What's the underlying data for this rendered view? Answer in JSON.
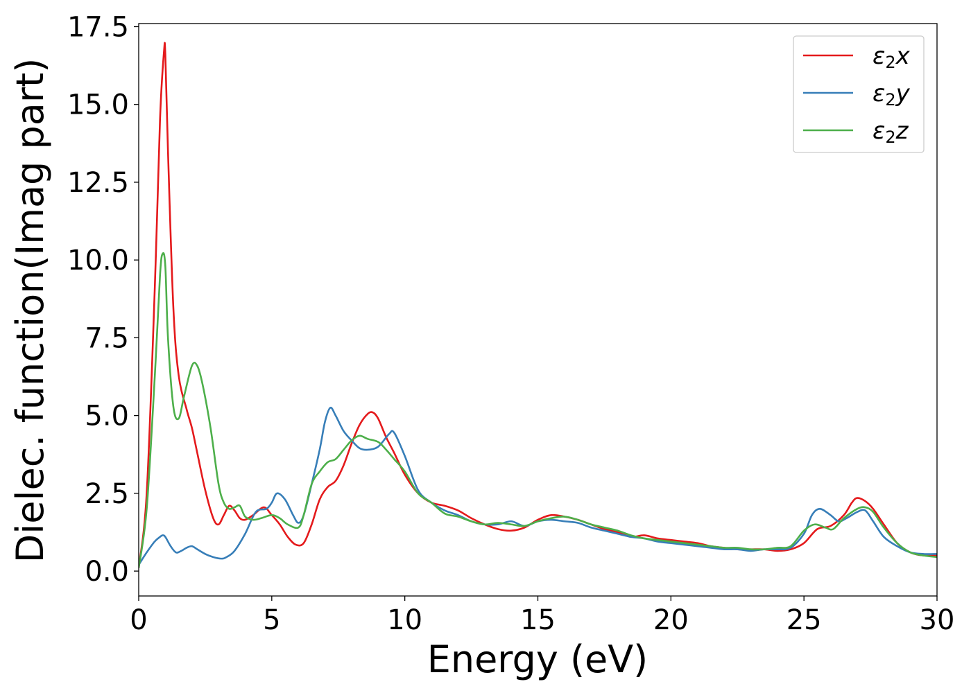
{
  "chart_data": {
    "type": "line",
    "title": "",
    "xlabel": "Energy (eV)",
    "ylabel": "Dielec. function(Imag part)",
    "xlim": [
      0,
      30
    ],
    "ylim": [
      -0.8,
      17.6
    ],
    "xticks": [
      0,
      5,
      10,
      15,
      20,
      25,
      30
    ],
    "xtick_labels": [
      "0",
      "5",
      "10",
      "15",
      "20",
      "25",
      "30"
    ],
    "yticks": [
      0.0,
      2.5,
      5.0,
      7.5,
      10.0,
      12.5,
      15.0,
      17.5
    ],
    "ytick_labels": [
      "0.0",
      "2.5",
      "5.0",
      "7.5",
      "10.0",
      "12.5",
      "15.0",
      "17.5"
    ],
    "grid": false,
    "legend_position": "top-right",
    "series": [
      {
        "name": "ε2x",
        "legend_base": "ε",
        "legend_sub": "2",
        "legend_suffix": "x",
        "color": "#e41a1c",
        "x": [
          0,
          0.3,
          0.6,
          0.8,
          0.95,
          1.0,
          1.1,
          1.3,
          1.5,
          1.8,
          2.0,
          2.2,
          2.5,
          2.8,
          3.0,
          3.2,
          3.4,
          3.6,
          3.8,
          4.0,
          4.3,
          4.7,
          5.0,
          5.3,
          5.6,
          5.9,
          6.2,
          6.5,
          6.8,
          7.1,
          7.4,
          7.7,
          8.0,
          8.3,
          8.6,
          8.8,
          9.0,
          9.3,
          9.6,
          10.0,
          10.5,
          11.0,
          11.5,
          12.0,
          12.5,
          13.0,
          13.5,
          14.0,
          14.5,
          15.0,
          15.5,
          16.0,
          16.5,
          17.0,
          17.5,
          18.0,
          18.5,
          19.0,
          19.5,
          20.0,
          20.5,
          21.0,
          21.5,
          22.0,
          22.5,
          23.0,
          23.5,
          24.0,
          24.5,
          25.0,
          25.5,
          26.0,
          26.5,
          26.8,
          27.0,
          27.3,
          27.6,
          28.0,
          28.5,
          29.0,
          29.5,
          30.0
        ],
        "values": [
          0.1,
          2.5,
          9.0,
          14.5,
          16.7,
          16.6,
          13.5,
          8.5,
          6.3,
          5.2,
          4.6,
          3.8,
          2.6,
          1.7,
          1.5,
          1.8,
          2.1,
          1.95,
          1.7,
          1.65,
          1.8,
          2.05,
          1.8,
          1.5,
          1.1,
          0.85,
          0.9,
          1.5,
          2.3,
          2.7,
          2.9,
          3.4,
          4.1,
          4.7,
          5.05,
          5.1,
          4.9,
          4.3,
          3.8,
          3.1,
          2.5,
          2.2,
          2.1,
          1.95,
          1.7,
          1.5,
          1.35,
          1.3,
          1.4,
          1.65,
          1.8,
          1.75,
          1.65,
          1.5,
          1.35,
          1.25,
          1.1,
          1.15,
          1.05,
          1.0,
          0.95,
          0.9,
          0.8,
          0.75,
          0.7,
          0.7,
          0.7,
          0.65,
          0.7,
          0.9,
          1.35,
          1.45,
          1.8,
          2.2,
          2.35,
          2.25,
          2.0,
          1.5,
          0.9,
          0.6,
          0.5,
          0.5
        ]
      },
      {
        "name": "ε2y",
        "legend_base": "ε",
        "legend_sub": "2",
        "legend_suffix": "y",
        "color": "#377eb8",
        "x": [
          0,
          0.3,
          0.6,
          0.8,
          0.9,
          1.0,
          1.2,
          1.4,
          1.6,
          1.8,
          2.0,
          2.2,
          2.5,
          2.8,
          3.1,
          3.3,
          3.6,
          4.0,
          4.4,
          4.8,
          5.0,
          5.2,
          5.5,
          5.8,
          6.0,
          6.2,
          6.5,
          6.8,
          7.0,
          7.2,
          7.4,
          7.7,
          8.0,
          8.3,
          8.6,
          9.0,
          9.4,
          9.6,
          10.0,
          10.5,
          11.0,
          11.5,
          12.0,
          12.5,
          13.0,
          13.5,
          14.0,
          14.5,
          15.0,
          15.5,
          16.0,
          16.5,
          17.0,
          17.5,
          18.0,
          18.5,
          19.0,
          19.5,
          20.0,
          20.5,
          21.0,
          21.5,
          22.0,
          22.5,
          23.0,
          23.5,
          24.0,
          24.5,
          25.0,
          25.3,
          25.6,
          26.0,
          26.3,
          26.6,
          27.0,
          27.3,
          27.6,
          28.0,
          28.5,
          29.0,
          29.5,
          30.0
        ],
        "values": [
          0.2,
          0.6,
          0.95,
          1.1,
          1.15,
          1.1,
          0.8,
          0.6,
          0.65,
          0.75,
          0.8,
          0.7,
          0.55,
          0.45,
          0.4,
          0.45,
          0.65,
          1.2,
          1.9,
          2.0,
          2.2,
          2.5,
          2.3,
          1.8,
          1.55,
          1.8,
          2.8,
          3.9,
          4.8,
          5.25,
          5.0,
          4.5,
          4.2,
          3.95,
          3.9,
          4.0,
          4.4,
          4.45,
          3.7,
          2.6,
          2.2,
          1.95,
          1.8,
          1.6,
          1.5,
          1.5,
          1.6,
          1.45,
          1.6,
          1.65,
          1.6,
          1.55,
          1.4,
          1.3,
          1.2,
          1.1,
          1.05,
          0.95,
          0.9,
          0.85,
          0.8,
          0.75,
          0.7,
          0.7,
          0.65,
          0.7,
          0.7,
          0.75,
          1.2,
          1.8,
          2.0,
          1.8,
          1.6,
          1.7,
          1.9,
          1.95,
          1.6,
          1.1,
          0.8,
          0.6,
          0.55,
          0.55
        ]
      },
      {
        "name": "ε2z",
        "legend_base": "ε",
        "legend_sub": "2",
        "legend_suffix": "z",
        "color": "#4daf4a",
        "x": [
          0,
          0.3,
          0.6,
          0.8,
          0.9,
          1.0,
          1.1,
          1.3,
          1.5,
          1.7,
          2.0,
          2.2,
          2.4,
          2.7,
          3.0,
          3.2,
          3.4,
          3.6,
          3.8,
          4.0,
          4.3,
          4.6,
          5.0,
          5.3,
          5.6,
          6.0,
          6.2,
          6.5,
          6.8,
          7.1,
          7.4,
          7.7,
          8.0,
          8.3,
          8.6,
          9.0,
          9.3,
          9.6,
          10.0,
          10.5,
          11.0,
          11.5,
          12.0,
          12.5,
          13.0,
          13.5,
          14.0,
          14.5,
          15.0,
          15.5,
          16.0,
          16.5,
          17.0,
          17.5,
          18.0,
          18.5,
          19.0,
          19.5,
          20.0,
          20.5,
          21.0,
          21.5,
          22.0,
          22.5,
          23.0,
          23.5,
          24.0,
          24.5,
          25.0,
          25.4,
          25.8,
          26.1,
          26.5,
          27.0,
          27.3,
          27.6,
          28.0,
          28.5,
          29.0,
          29.5,
          30.0
        ],
        "values": [
          0.1,
          2.0,
          6.2,
          9.5,
          10.2,
          9.8,
          7.5,
          5.3,
          4.9,
          5.6,
          6.6,
          6.6,
          6.0,
          4.6,
          2.8,
          2.2,
          2.0,
          2.05,
          2.1,
          1.75,
          1.65,
          1.7,
          1.8,
          1.7,
          1.5,
          1.4,
          1.8,
          2.8,
          3.2,
          3.5,
          3.6,
          3.9,
          4.2,
          4.35,
          4.25,
          4.15,
          3.9,
          3.6,
          3.2,
          2.5,
          2.2,
          1.85,
          1.75,
          1.6,
          1.5,
          1.55,
          1.5,
          1.45,
          1.6,
          1.7,
          1.75,
          1.65,
          1.5,
          1.4,
          1.3,
          1.15,
          1.05,
          1.0,
          0.95,
          0.9,
          0.85,
          0.8,
          0.75,
          0.75,
          0.7,
          0.7,
          0.75,
          0.8,
          1.3,
          1.5,
          1.4,
          1.35,
          1.7,
          2.0,
          2.05,
          1.9,
          1.4,
          0.9,
          0.6,
          0.5,
          0.45
        ]
      }
    ]
  }
}
